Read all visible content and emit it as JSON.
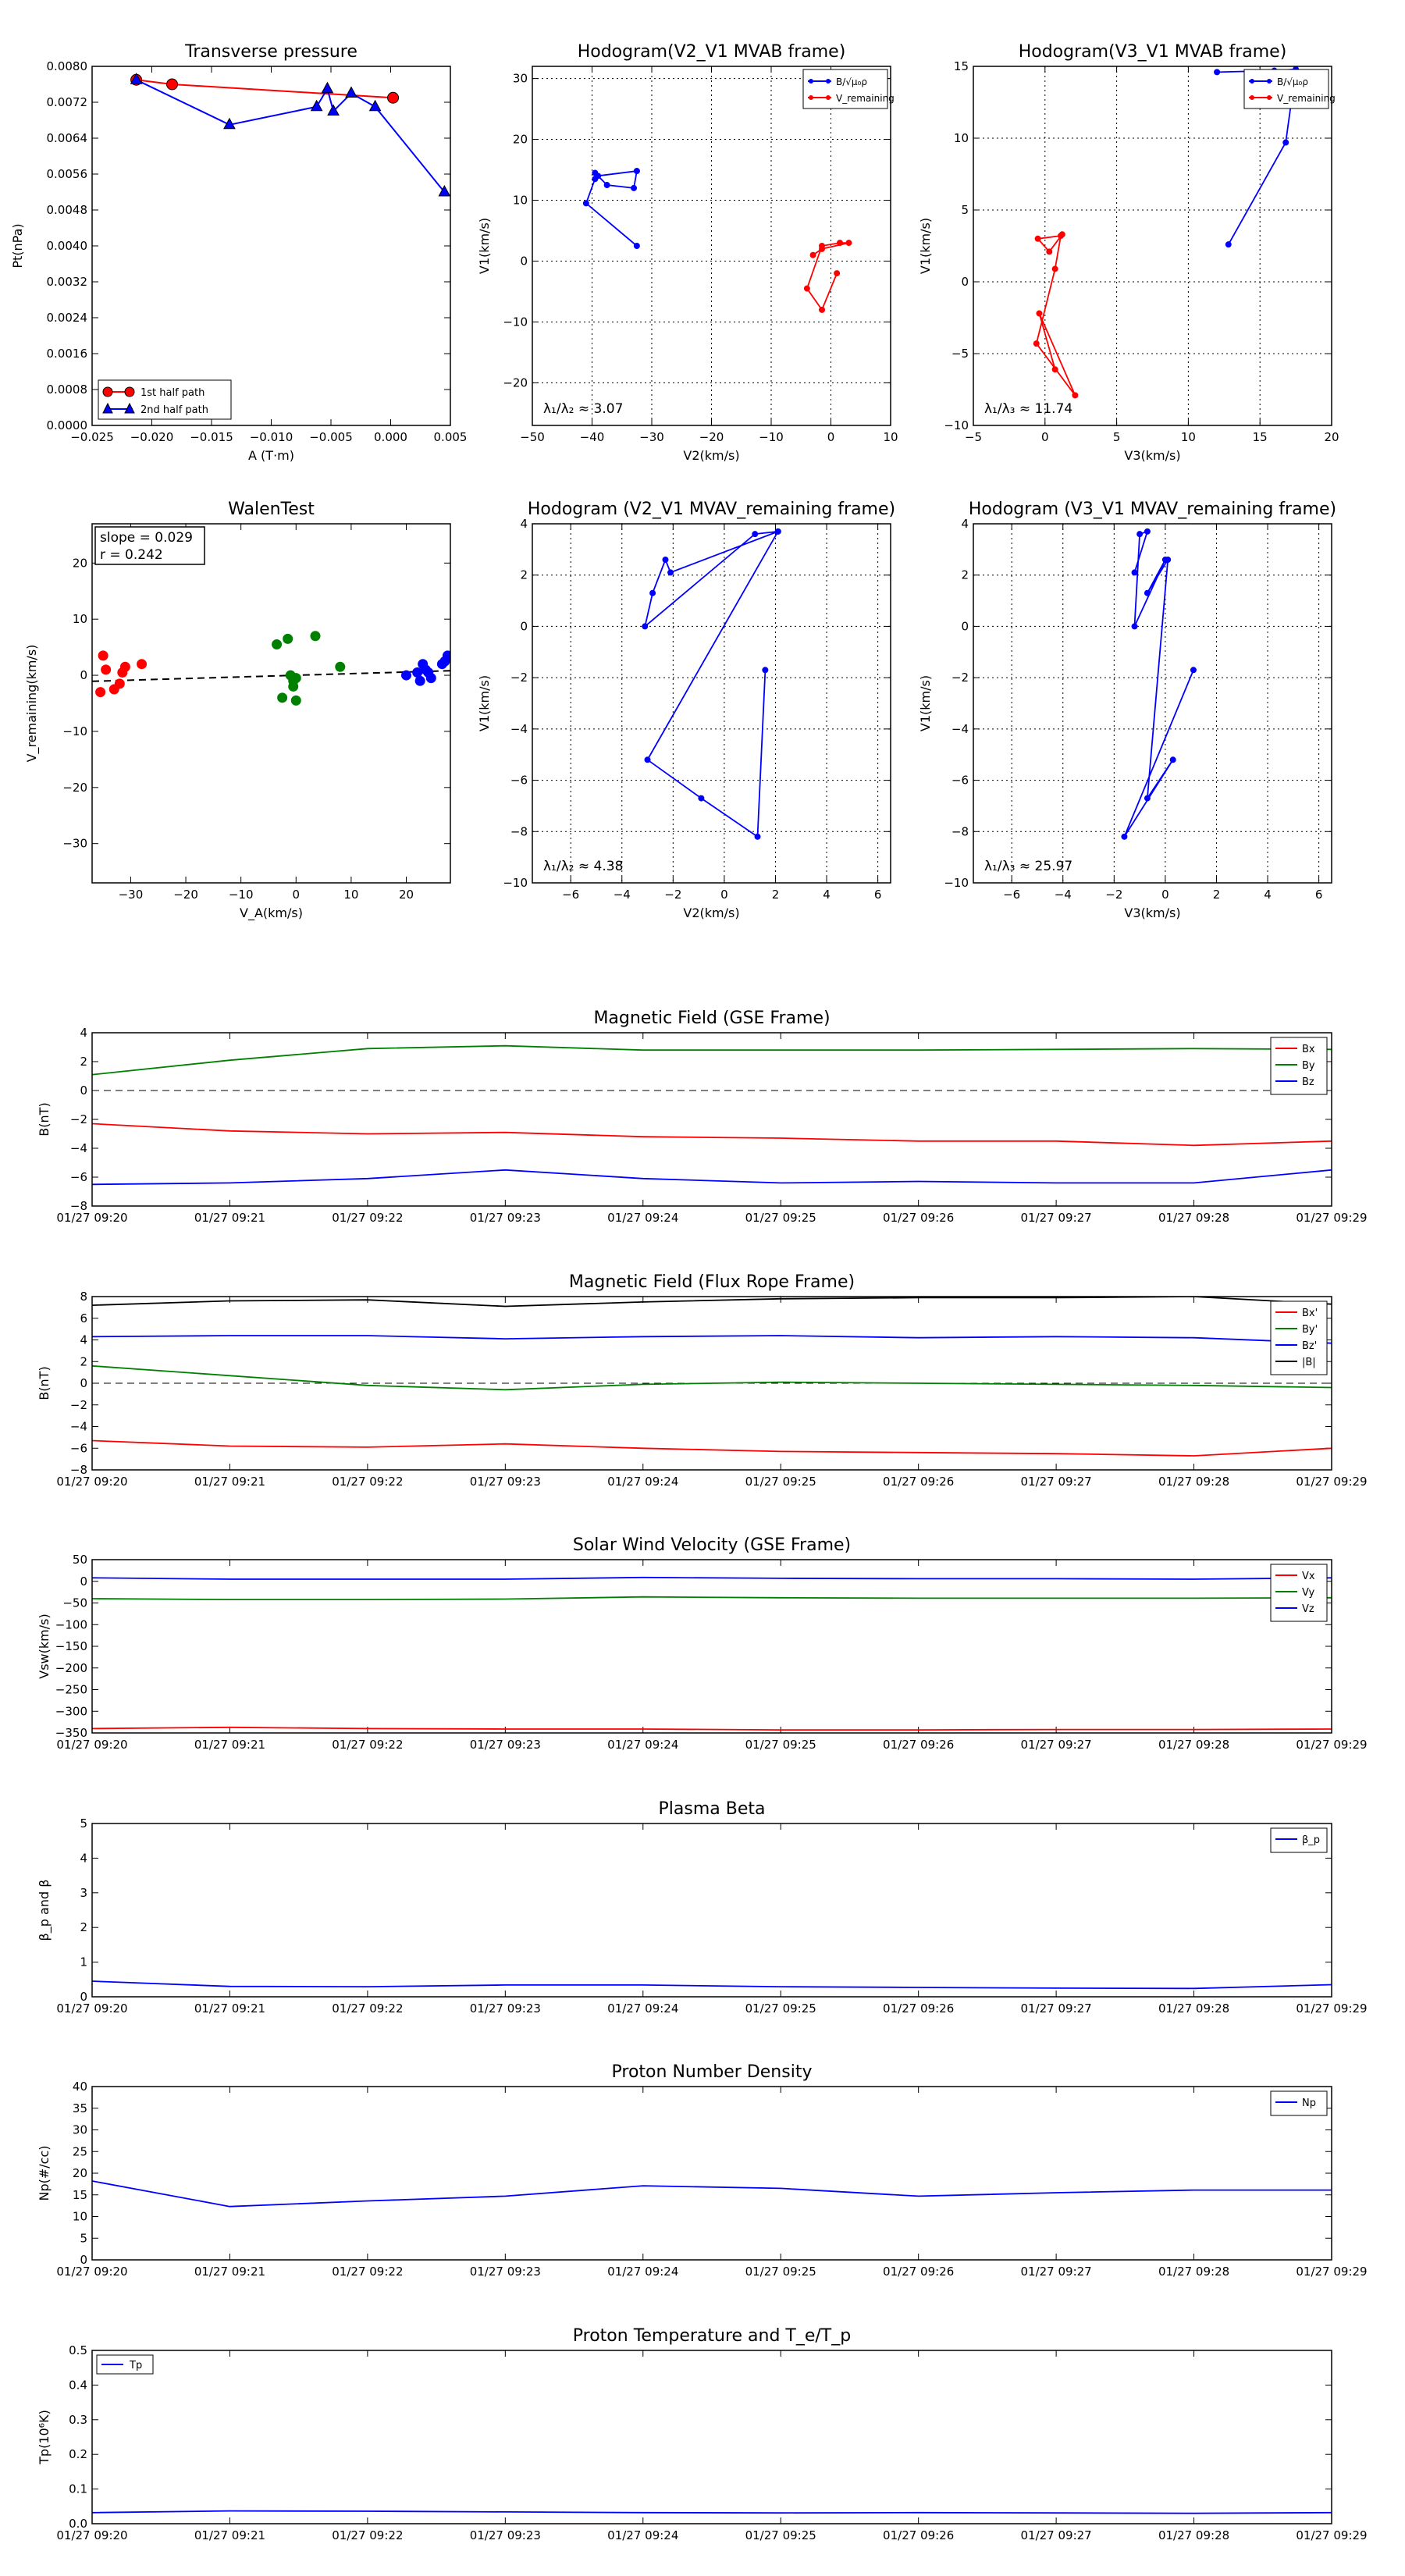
{
  "colors": {
    "red": "#ff0000",
    "green": "#008000",
    "blue": "#0000ff",
    "black": "#000000"
  },
  "chart_data": [
    {
      "id": "tp",
      "type": "scatter",
      "title": "Transverse pressure",
      "xlabel": "A (T·m)",
      "ylabel": "Pt(nPa)",
      "xlim": [
        -0.025,
        0.005
      ],
      "ylim": [
        0,
        0.008
      ],
      "xticks": [
        "−0.025",
        "−0.020",
        "−0.015",
        "−0.010",
        "−0.005",
        "0.000",
        "0.005"
      ],
      "yticks": [
        "0.0000",
        "0.0008",
        "0.0016",
        "0.0024",
        "0.0032",
        "0.0040",
        "0.0048",
        "0.0056",
        "0.0064",
        "0.0072",
        "0.0080"
      ],
      "series": [
        {
          "name": "1st half path",
          "color": "#ff0000",
          "marker": "circle",
          "x": [
            -0.0213,
            -0.0183,
            0.0002
          ],
          "y": [
            0.0077,
            0.0076,
            0.0073
          ]
        },
        {
          "name": "2nd half path",
          "color": "#0000ff",
          "marker": "triangle",
          "x": [
            -0.0213,
            -0.0135,
            -0.0062,
            -0.0053,
            -0.0048,
            -0.0033,
            -0.0013,
            0.0045
          ],
          "y": [
            0.0077,
            0.0067,
            0.0071,
            0.0075,
            0.007,
            0.0074,
            0.0071,
            0.0052
          ]
        }
      ],
      "legend": "bottom-left"
    },
    {
      "id": "h1",
      "type": "line",
      "title": "Hodogram(V2_V1 MVAB frame)",
      "xlabel": "V2(km/s)",
      "ylabel": "V1(km/s)",
      "xlim": [
        -50,
        10
      ],
      "ylim": [
        -27,
        32
      ],
      "xticks": [
        "−50",
        "−40",
        "−30",
        "−20",
        "−10",
        "0",
        "10"
      ],
      "yticks": [
        "−20",
        "−10",
        "0",
        "10",
        "20",
        "30"
      ],
      "series": [
        {
          "name": "B/√μ₀ρ",
          "color": "#0000ff",
          "x": [
            -32.5,
            -41,
            -39.5,
            -39.5,
            -37.5,
            -33,
            -32.5,
            -39,
            -32.5
          ],
          "y": [
            2.5,
            9.5,
            13.5,
            14.5,
            12.5,
            12,
            14.8,
            14,
            14.8
          ]
        },
        {
          "name": "V_remaining",
          "color": "#ff0000",
          "x": [
            1,
            -1.5,
            -4,
            -1.5,
            1.5,
            3,
            -1.5,
            -3
          ],
          "y": [
            -2,
            -8,
            -4.5,
            2.5,
            3,
            3,
            2,
            1
          ]
        }
      ],
      "legend": "top-right",
      "annotation": "λ₁/λ₂ ≈ 3.07"
    },
    {
      "id": "h2",
      "type": "line",
      "title": "Hodogram(V3_V1 MVAB frame)",
      "xlabel": "V3(km/s)",
      "ylabel": "V1(km/s)",
      "xlim": [
        -5,
        20
      ],
      "ylim": [
        -10,
        15
      ],
      "xticks": [
        "−5",
        "0",
        "5",
        "10",
        "15",
        "20"
      ],
      "yticks": [
        "−10",
        "−5",
        "0",
        "5",
        "10",
        "15"
      ],
      "series": [
        {
          "name": "B/√μ₀ρ",
          "color": "#0000ff",
          "x": [
            12.8,
            16.8,
            17.5,
            16,
            12
          ],
          "y": [
            2.6,
            9.7,
            14.8,
            14.7,
            14.6
          ]
        },
        {
          "name": "V_remaining",
          "color": "#ff0000",
          "x": [
            0.7,
            -0.4,
            2.1,
            -0.6,
            0.7,
            1.1,
            -0.5,
            0.3,
            1.2
          ],
          "y": [
            -6.1,
            -2.2,
            -7.9,
            -4.3,
            0.9,
            3.2,
            3.0,
            2.1,
            3.3
          ]
        }
      ],
      "legend": "top-right",
      "annotation": "λ₁/λ₃ ≈ 11.74"
    },
    {
      "id": "walen",
      "type": "scatter",
      "title": "WalenTest",
      "xlabel": "V_A(km/s)",
      "ylabel": "V_remaining(km/s)",
      "xlim": [
        -37,
        28
      ],
      "ylim": [
        -37,
        27
      ],
      "xticks": [
        "−30",
        "−20",
        "−10",
        "0",
        "10",
        "20"
      ],
      "yticks": [
        "−30",
        "−20",
        "−10",
        "0",
        "10",
        "20"
      ],
      "series": [
        {
          "name": "red",
          "color": "#ff0000",
          "x": [
            -35.5,
            -35,
            -34.5,
            -33,
            -32,
            -31.5,
            -31,
            -28
          ],
          "y": [
            -3,
            3.5,
            1,
            -2.5,
            -1.5,
            0.5,
            1.5,
            2
          ]
        },
        {
          "name": "green",
          "color": "#008000",
          "x": [
            -3.5,
            -2.5,
            -1.5,
            -1,
            -0.5,
            -0.5,
            0,
            0,
            3.5,
            8
          ],
          "y": [
            5.5,
            -4,
            6.5,
            0,
            -1,
            -2,
            -0.5,
            -4.5,
            7,
            1.5
          ]
        },
        {
          "name": "blue",
          "color": "#0000ff",
          "x": [
            20,
            22,
            22.5,
            23,
            23.5,
            24,
            24.5,
            26.5,
            27,
            27.5
          ],
          "y": [
            0,
            0.5,
            -1,
            2,
            1,
            0.5,
            -0.5,
            2,
            2.5,
            3.5
          ]
        }
      ],
      "fit": {
        "slope": 0.029,
        "x": [
          -37,
          28
        ]
      },
      "annotation_slope": "slope = 0.029",
      "annotation_r": "r = 0.242"
    },
    {
      "id": "h3",
      "type": "line",
      "title": "Hodogram (V2_V1 MVAV_remaining frame)",
      "xlabel": "V2(km/s)",
      "ylabel": "V1(km/s)",
      "xlim": [
        -7.5,
        6.5
      ],
      "ylim": [
        -10,
        4
      ],
      "xticks": [
        "−6",
        "−4",
        "−2",
        "0",
        "2",
        "4",
        "6"
      ],
      "yticks": [
        "−10",
        "−8",
        "−6",
        "−4",
        "−2",
        "0",
        "2",
        "4"
      ],
      "series": [
        {
          "name": "path",
          "color": "#0000ff",
          "x": [
            1.6,
            1.3,
            -0.9,
            -3,
            2.1,
            -2.1,
            -2.3,
            -2.8,
            -3.1,
            1.2,
            2.1
          ],
          "y": [
            -1.7,
            -8.2,
            -6.7,
            -5.2,
            3.7,
            2.1,
            2.6,
            1.3,
            0,
            3.6,
            3.7
          ]
        }
      ],
      "annotation": "λ₁/λ₂ ≈ 4.38"
    },
    {
      "id": "h4",
      "type": "line",
      "title": "Hodogram (V3_V1 MVAV_remaining frame)",
      "xlabel": "V3(km/s)",
      "ylabel": "V1(km/s)",
      "xlim": [
        -7.5,
        6.5
      ],
      "ylim": [
        -10,
        4
      ],
      "xticks": [
        "−6",
        "−4",
        "−2",
        "0",
        "2",
        "4",
        "6"
      ],
      "yticks": [
        "−10",
        "−8",
        "−6",
        "−4",
        "−2",
        "0",
        "2",
        "4"
      ],
      "series": [
        {
          "name": "path",
          "color": "#0000ff",
          "x": [
            1.1,
            -1.6,
            0.3,
            -0.7,
            0.1,
            -0.7,
            0,
            -1.2,
            -1,
            -0.7,
            -1.2
          ],
          "y": [
            -1.7,
            -8.2,
            -5.2,
            -6.7,
            2.6,
            1.3,
            2.6,
            0,
            3.6,
            3.7,
            2.1
          ]
        }
      ],
      "annotation": "λ₁/λ₃ ≈ 25.97"
    },
    {
      "id": "ts1",
      "type": "line",
      "title": "Magnetic Field (GSE Frame)",
      "ylabel": "B(nT)",
      "ylim": [
        -8,
        4
      ],
      "yticks": [
        "−8",
        "−6",
        "−4",
        "−2",
        "0",
        "2",
        "4"
      ],
      "zero_line": true,
      "x": [
        "01/27 09:20",
        "01/27 09:21",
        "01/27 09:22",
        "01/27 09:23",
        "01/27 09:24",
        "01/27 09:25",
        "01/27 09:26",
        "01/27 09:27",
        "01/27 09:28",
        "01/27 09:29"
      ],
      "series": [
        {
          "name": "Bx",
          "color": "#ff0000",
          "values": [
            -2.3,
            -2.8,
            -3.0,
            -2.9,
            -3.2,
            -3.3,
            -3.5,
            -3.5,
            -3.8,
            -3.5
          ]
        },
        {
          "name": "By",
          "color": "#008000",
          "values": [
            1.1,
            2.1,
            2.9,
            3.1,
            2.8,
            2.8,
            2.8,
            2.85,
            2.9,
            2.85
          ]
        },
        {
          "name": "Bz",
          "color": "#0000ff",
          "values": [
            -6.5,
            -6.4,
            -6.1,
            -5.5,
            -6.1,
            -6.4,
            -6.3,
            -6.4,
            -6.4,
            -5.5
          ]
        }
      ]
    },
    {
      "id": "ts2",
      "type": "line",
      "title": "Magnetic Field (Flux Rope Frame)",
      "ylabel": "B(nT)",
      "ylim": [
        -8,
        8
      ],
      "yticks": [
        "−8",
        "−6",
        "−4",
        "−2",
        "0",
        "2",
        "4",
        "6",
        "8"
      ],
      "zero_line": true,
      "x": [
        "01/27 09:20",
        "01/27 09:21",
        "01/27 09:22",
        "01/27 09:23",
        "01/27 09:24",
        "01/27 09:25",
        "01/27 09:26",
        "01/27 09:27",
        "01/27 09:28",
        "01/27 09:29"
      ],
      "series": [
        {
          "name": "Bx'",
          "color": "#ff0000",
          "values": [
            -5.3,
            -5.8,
            -5.9,
            -5.6,
            -6.0,
            -6.3,
            -6.4,
            -6.5,
            -6.7,
            -6.0
          ]
        },
        {
          "name": "By'",
          "color": "#008000",
          "values": [
            1.6,
            0.7,
            -0.2,
            -0.6,
            -0.1,
            0.1,
            0,
            -0.1,
            -0.2,
            -0.4
          ]
        },
        {
          "name": "Bz'",
          "color": "#0000ff",
          "values": [
            4.3,
            4.4,
            4.4,
            4.1,
            4.3,
            4.4,
            4.2,
            4.3,
            4.2,
            3.7
          ]
        },
        {
          "name": "|B|",
          "color": "#000000",
          "values": [
            7.2,
            7.6,
            7.7,
            7.1,
            7.5,
            7.8,
            7.9,
            7.9,
            8.0,
            7.3
          ]
        }
      ]
    },
    {
      "id": "ts3",
      "type": "line",
      "title": "Solar Wind Velocity (GSE Frame)",
      "ylabel": "Vsw(km/s)",
      "ylim": [
        -350,
        50
      ],
      "yticks": [
        "−350",
        "−300",
        "−250",
        "−200",
        "−150",
        "−100",
        "−50",
        "0",
        "50"
      ],
      "x": [
        "01/27 09:20",
        "01/27 09:21",
        "01/27 09:22",
        "01/27 09:23",
        "01/27 09:24",
        "01/27 09:25",
        "01/27 09:26",
        "01/27 09:27",
        "01/27 09:28",
        "01/27 09:29"
      ],
      "series": [
        {
          "name": "Vx",
          "color": "#ff0000",
          "values": [
            -340,
            -337,
            -340,
            -341,
            -341,
            -343,
            -343,
            -342,
            -342,
            -341
          ]
        },
        {
          "name": "Vy",
          "color": "#008000",
          "values": [
            -40,
            -42,
            -42,
            -41,
            -36,
            -38,
            -39,
            -39,
            -39,
            -38
          ]
        },
        {
          "name": "Vz",
          "color": "#0000ff",
          "values": [
            8,
            5,
            5,
            5,
            9,
            7,
            6,
            6,
            5,
            8
          ]
        }
      ]
    },
    {
      "id": "ts4",
      "type": "line",
      "title": "Plasma Beta",
      "ylabel": "β_p and β",
      "ylim": [
        0,
        5
      ],
      "yticks": [
        "0",
        "1",
        "2",
        "3",
        "4",
        "5"
      ],
      "x": [
        "01/27 09:20",
        "01/27 09:21",
        "01/27 09:22",
        "01/27 09:23",
        "01/27 09:24",
        "01/27 09:25",
        "01/27 09:26",
        "01/27 09:27",
        "01/27 09:28",
        "01/27 09:29"
      ],
      "series": [
        {
          "name": "β_p",
          "color": "#0000ff",
          "values": [
            0.45,
            0.3,
            0.29,
            0.34,
            0.34,
            0.29,
            0.27,
            0.25,
            0.24,
            0.35
          ]
        }
      ]
    },
    {
      "id": "ts5",
      "type": "line",
      "title": "Proton Number Density",
      "ylabel": "Np(#/cc)",
      "ylim": [
        0,
        40
      ],
      "yticks": [
        "0",
        "5",
        "10",
        "15",
        "20",
        "25",
        "30",
        "35",
        "40"
      ],
      "x": [
        "01/27 09:20",
        "01/27 09:21",
        "01/27 09:22",
        "01/27 09:23",
        "01/27 09:24",
        "01/27 09:25",
        "01/27 09:26",
        "01/27 09:27",
        "01/27 09:28",
        "01/27 09:29"
      ],
      "series": [
        {
          "name": "Np",
          "color": "#0000ff",
          "values": [
            18.2,
            12.3,
            13.6,
            14.7,
            17.1,
            16.5,
            14.7,
            15.5,
            16.1,
            16.1
          ]
        }
      ]
    },
    {
      "id": "ts6",
      "type": "line",
      "title": "Proton Temperature and T_e/T_p",
      "ylabel": "Tp(10⁶K)",
      "ylim": [
        0,
        0.5
      ],
      "yticks": [
        "0.0",
        "0.1",
        "0.2",
        "0.3",
        "0.4",
        "0.5"
      ],
      "x": [
        "01/27 09:20",
        "01/27 09:21",
        "01/27 09:22",
        "01/27 09:23",
        "01/27 09:24",
        "01/27 09:25",
        "01/27 09:26",
        "01/27 09:27",
        "01/27 09:28",
        "01/27 09:29"
      ],
      "series": [
        {
          "name": "Tp",
          "color": "#0000ff",
          "values": [
            0.032,
            0.037,
            0.036,
            0.034,
            0.032,
            0.031,
            0.032,
            0.031,
            0.03,
            0.032
          ]
        }
      ]
    }
  ]
}
